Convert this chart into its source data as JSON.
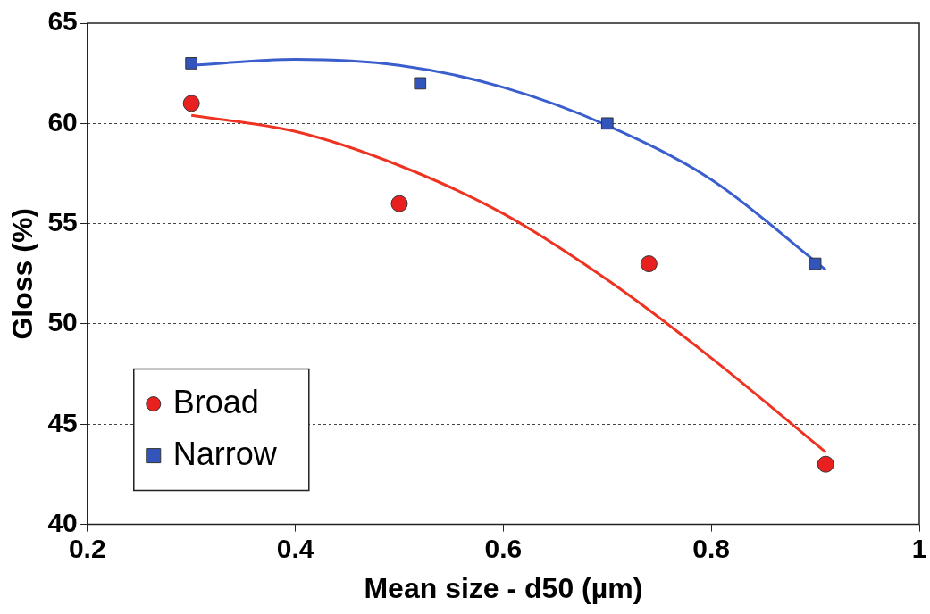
{
  "chart_data": {
    "type": "scatter",
    "xlabel": "Mean size - d50 (µm)",
    "ylabel": "Gloss (%)",
    "xlim": [
      0.2,
      1
    ],
    "xticks": [
      0.2,
      0.4,
      0.6,
      0.8,
      1
    ],
    "ylim": [
      40,
      65
    ],
    "yticks": [
      40,
      45,
      50,
      55,
      60,
      65
    ],
    "grid": "y",
    "legend": "bottom left",
    "series": [
      {
        "name": "Broad",
        "color": "#e8201f",
        "marker": "circle",
        "x": [
          0.3,
          0.5,
          0.74,
          0.91
        ],
        "values": [
          61,
          56,
          53,
          43
        ]
      },
      {
        "name": "Narrow",
        "color": "#3355bb",
        "marker": "square",
        "x": [
          0.3,
          0.52,
          0.7,
          0.9
        ],
        "values": [
          63,
          62,
          60,
          53
        ]
      },
      {
        "type": "line",
        "color": "#ee3322",
        "x": [
          0.3,
          0.4,
          0.5,
          0.6,
          0.7,
          0.8,
          0.91
        ],
        "values": [
          60.4,
          59.6,
          57.9,
          55.5,
          52.2,
          48.3,
          43.6
        ]
      },
      {
        "type": "line",
        "color": "#3a5fcd",
        "x": [
          0.3,
          0.4,
          0.5,
          0.6,
          0.7,
          0.8,
          0.91
        ],
        "values": [
          62.9,
          63.2,
          62.9,
          61.8,
          59.9,
          57.2,
          52.7
        ]
      }
    ]
  }
}
